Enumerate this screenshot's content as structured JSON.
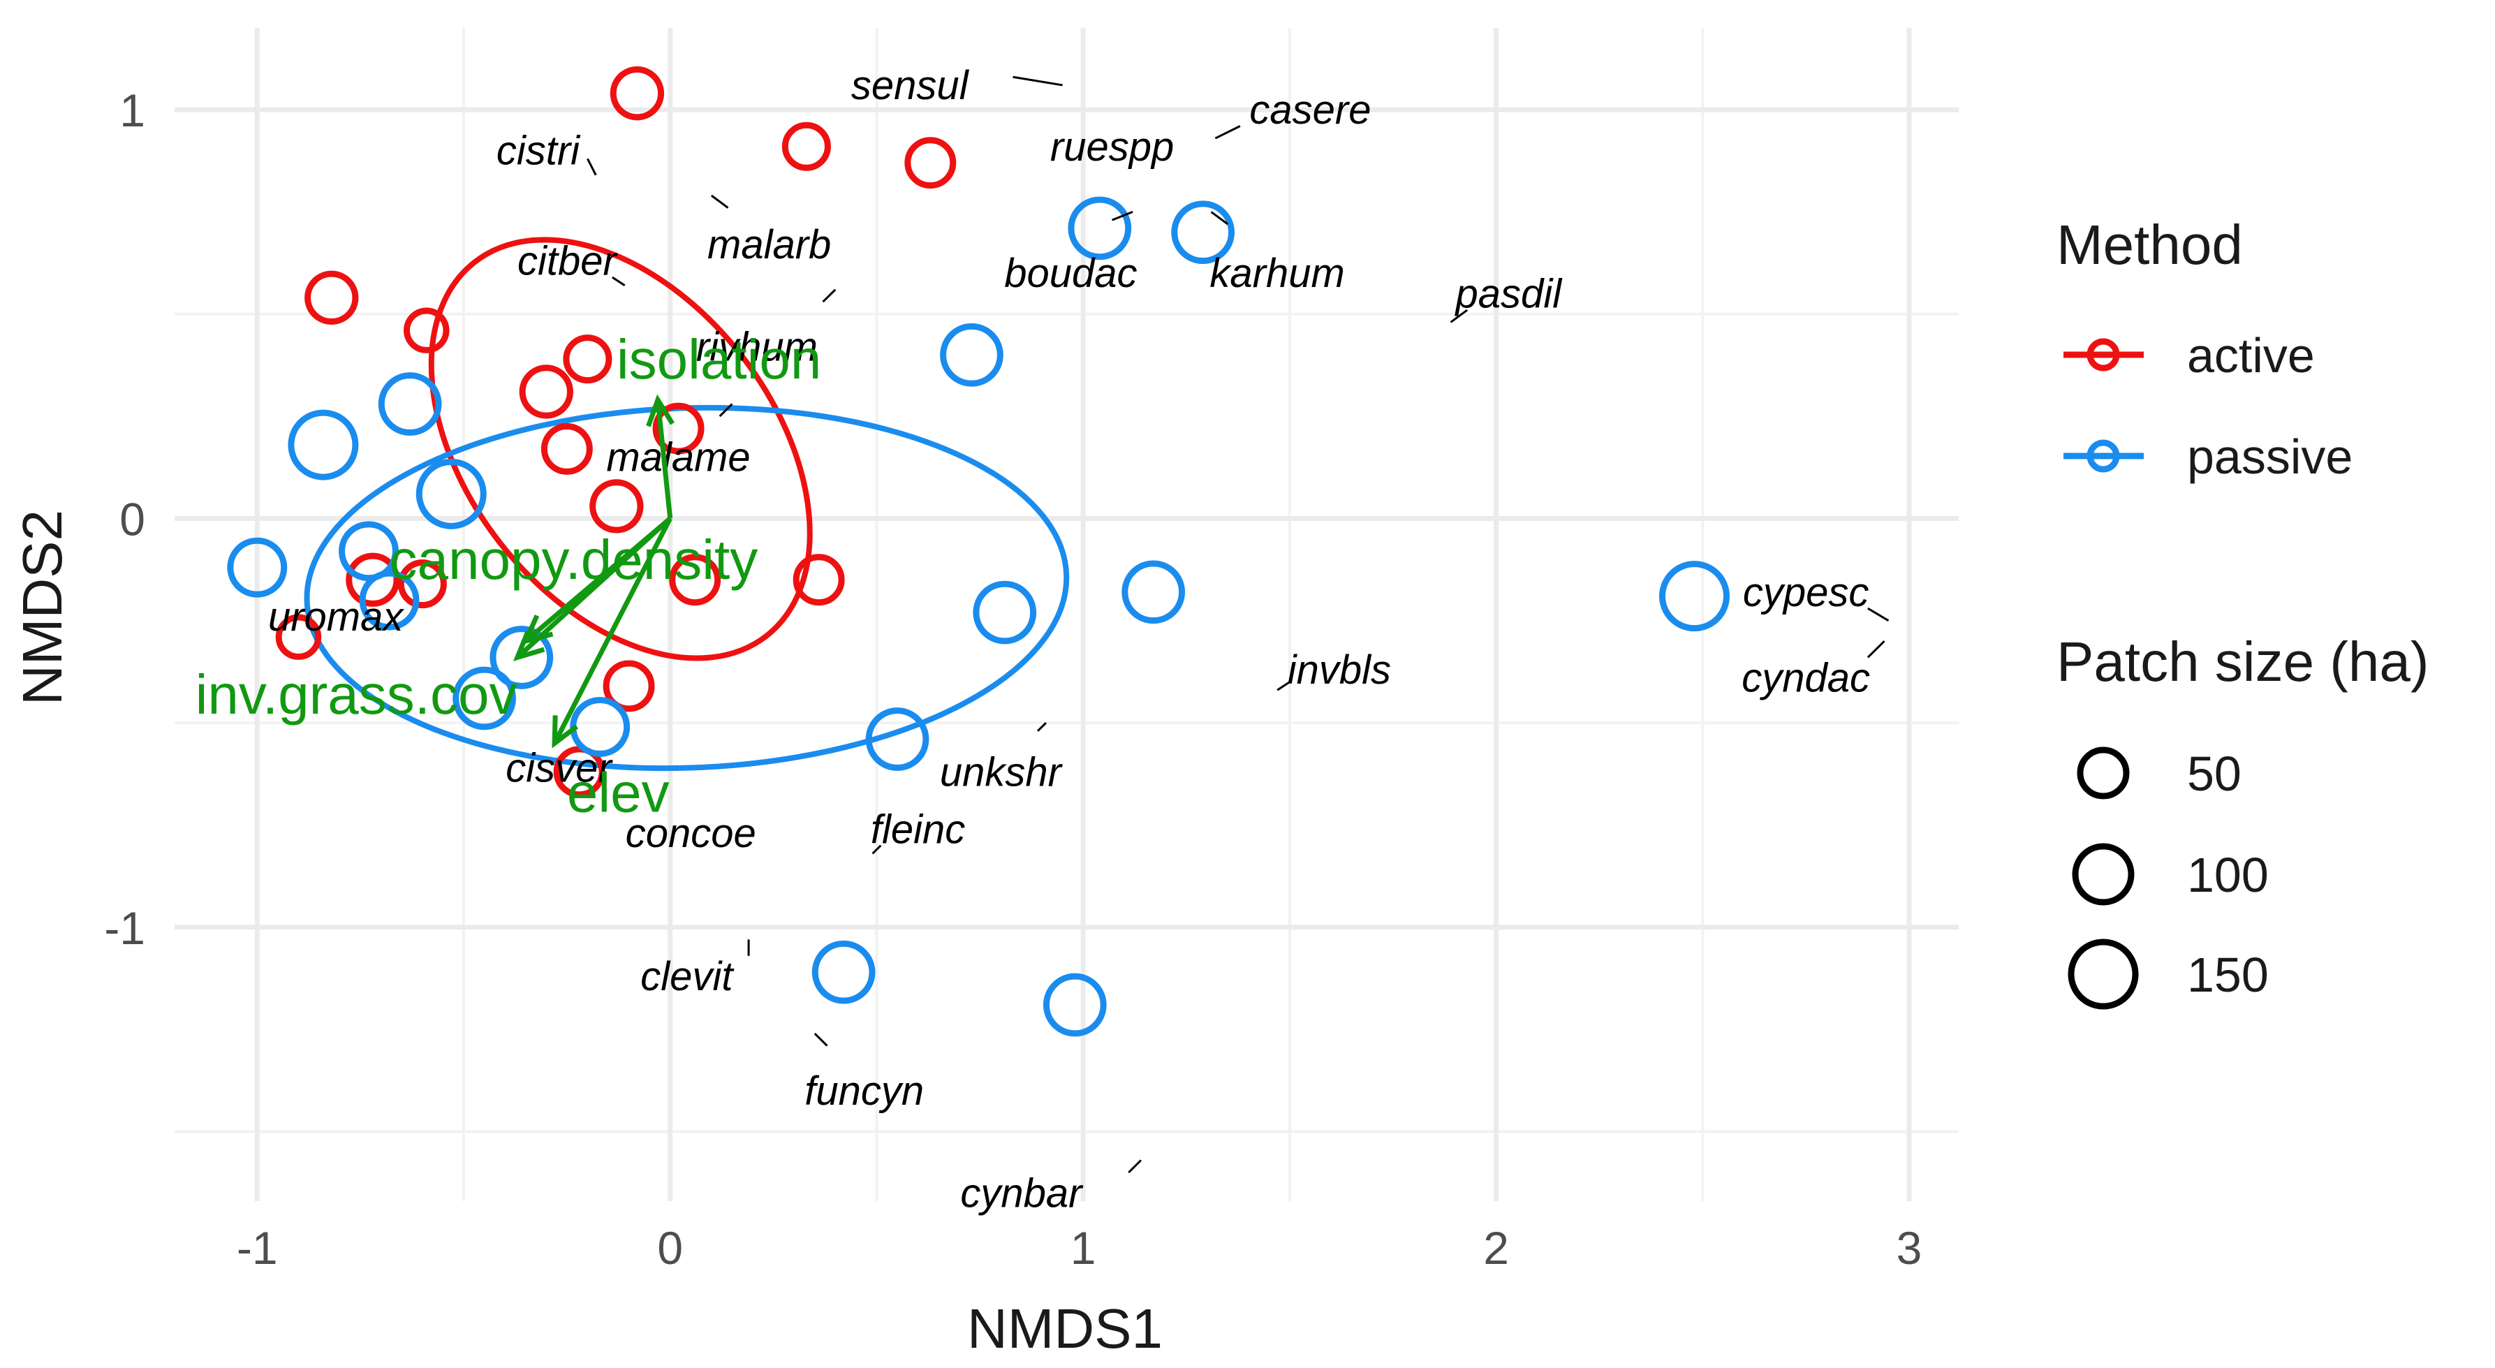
{
  "chart_data": {
    "type": "scatter",
    "title": "",
    "xlabel": "NMDS1",
    "ylabel": "NMDS2",
    "xlim": [
      -1.2,
      3.12
    ],
    "ylim": [
      -1.67,
      1.2
    ],
    "xticks": [
      -1,
      0,
      1,
      2,
      3
    ],
    "yticks": [
      -1,
      0,
      1
    ],
    "xtick_labels": [
      "-1",
      "0",
      "1",
      "2",
      "3"
    ],
    "ytick_labels": [
      "-1",
      "0",
      "1"
    ],
    "grid": true,
    "colors": {
      "active": "#ee1111",
      "passive": "#1a8cee",
      "vectors": "#119911"
    },
    "series": [
      {
        "name": "active",
        "color": "#ee1111",
        "points": [
          {
            "x": -0.08,
            "y": 1.04,
            "size": 50
          },
          {
            "x": 0.33,
            "y": 0.91,
            "size": 30
          },
          {
            "x": 0.63,
            "y": 0.87,
            "size": 40
          },
          {
            "x": -0.82,
            "y": 0.54,
            "size": 50
          },
          {
            "x": -0.59,
            "y": 0.46,
            "size": 20
          },
          {
            "x": -0.2,
            "y": 0.39,
            "size": 30
          },
          {
            "x": -0.3,
            "y": 0.31,
            "size": 50
          },
          {
            "x": 0.02,
            "y": 0.22,
            "size": 40
          },
          {
            "x": -0.25,
            "y": 0.17,
            "size": 40
          },
          {
            "x": -0.13,
            "y": 0.03,
            "size": 50
          },
          {
            "x": -0.72,
            "y": -0.15,
            "size": 50
          },
          {
            "x": -0.6,
            "y": -0.16,
            "size": 30
          },
          {
            "x": 0.06,
            "y": -0.15,
            "size": 40
          },
          {
            "x": 0.36,
            "y": -0.15,
            "size": 40
          },
          {
            "x": -0.9,
            "y": -0.29,
            "size": 20
          },
          {
            "x": -0.1,
            "y": -0.41,
            "size": 40
          },
          {
            "x": -0.22,
            "y": -0.62,
            "size": 40
          }
        ]
      },
      {
        "name": "passive",
        "color": "#1a8cee",
        "points": [
          {
            "x": 1.04,
            "y": 0.71,
            "size": 100
          },
          {
            "x": 1.29,
            "y": 0.7,
            "size": 100
          },
          {
            "x": 0.73,
            "y": 0.4,
            "size": 100
          },
          {
            "x": -0.63,
            "y": 0.28,
            "size": 100
          },
          {
            "x": -0.84,
            "y": 0.18,
            "size": 150
          },
          {
            "x": -0.53,
            "y": 0.06,
            "size": 150
          },
          {
            "x": -0.73,
            "y": -0.08,
            "size": 80
          },
          {
            "x": -1.0,
            "y": -0.12,
            "size": 80
          },
          {
            "x": -0.68,
            "y": -0.2,
            "size": 80
          },
          {
            "x": 1.17,
            "y": -0.18,
            "size": 100
          },
          {
            "x": 2.48,
            "y": -0.19,
            "size": 150
          },
          {
            "x": 0.81,
            "y": -0.23,
            "size": 100
          },
          {
            "x": -0.36,
            "y": -0.34,
            "size": 100
          },
          {
            "x": -0.45,
            "y": -0.44,
            "size": 100
          },
          {
            "x": -0.17,
            "y": -0.51,
            "size": 80
          },
          {
            "x": 0.55,
            "y": -0.54,
            "size": 100
          },
          {
            "x": 0.42,
            "y": -1.11,
            "size": 100
          },
          {
            "x": 0.98,
            "y": -1.19,
            "size": 100
          }
        ]
      }
    ],
    "ellipses": [
      {
        "group": "active",
        "cx": -0.12,
        "cy": 0.17,
        "rx": 0.37,
        "ry": 0.58,
        "angle_deg": -38
      },
      {
        "group": "passive",
        "cx": 0.04,
        "cy": -0.17,
        "rx": 0.92,
        "ry": 0.44,
        "angle_deg": -2
      }
    ],
    "vectors": [
      {
        "label": "isolation",
        "x": -0.03,
        "y": 0.29,
        "label_x": -0.13,
        "label_y": 0.39
      },
      {
        "label": "canopy.density",
        "x": -0.35,
        "y": -0.3,
        "label_x": -0.68,
        "label_y": -0.1
      },
      {
        "label": "inv.grass.cov",
        "x": -0.37,
        "y": -0.34,
        "label_x": -1.15,
        "label_y": -0.43
      },
      {
        "label": "elev",
        "x": -0.28,
        "y": -0.55,
        "label_x": -0.25,
        "label_y": -0.67
      }
    ],
    "species_labels": [
      {
        "label": "sensul",
        "x": 0.58,
        "y": 1.06,
        "seg": [
          0.83,
          1.08,
          0.95,
          1.06
        ]
      },
      {
        "label": "casere",
        "x": 1.55,
        "y": 1.0,
        "seg": [
          1.38,
          0.96,
          1.32,
          0.93
        ]
      },
      {
        "label": "cistri",
        "x": -0.32,
        "y": 0.9,
        "seg": [
          -0.2,
          0.88,
          -0.18,
          0.84
        ]
      },
      {
        "label": "ruespp",
        "x": 1.07,
        "y": 0.91,
        "seg": [
          null,
          null,
          null,
          null
        ]
      },
      {
        "label": "malarb",
        "x": 0.24,
        "y": 0.67,
        "seg": [
          0.1,
          0.79,
          0.14,
          0.76
        ]
      },
      {
        "label": "boudac",
        "x": 0.97,
        "y": 0.6,
        "seg": [
          1.07,
          0.73,
          1.12,
          0.75
        ]
      },
      {
        "label": "karhum",
        "x": 1.47,
        "y": 0.6,
        "seg": [
          1.31,
          0.75,
          1.35,
          0.72
        ]
      },
      {
        "label": "citber",
        "x": -0.25,
        "y": 0.63,
        "seg": [
          -0.14,
          0.59,
          -0.11,
          0.57
        ]
      },
      {
        "label": "pasdil",
        "x": 2.03,
        "y": 0.55,
        "seg": [
          1.89,
          0.48,
          1.93,
          0.51
        ]
      },
      {
        "label": "rivhum",
        "x": 0.21,
        "y": 0.42,
        "seg": [
          0.37,
          0.53,
          0.4,
          0.56
        ]
      },
      {
        "label": "malame",
        "x": 0.02,
        "y": 0.15,
        "seg": [
          0.12,
          0.25,
          0.15,
          0.28
        ]
      },
      {
        "label": "uromax",
        "x": -0.81,
        "y": -0.24,
        "seg": [
          null,
          null,
          null,
          null
        ]
      },
      {
        "label": "cypesc",
        "x": 2.75,
        "y": -0.18,
        "seg": [
          2.9,
          -0.22,
          2.95,
          -0.25
        ]
      },
      {
        "label": "cyndac",
        "x": 2.75,
        "y": -0.39,
        "seg": [
          2.94,
          -0.3,
          2.9,
          -0.34
        ]
      },
      {
        "label": "invbls",
        "x": 1.62,
        "y": -0.37,
        "seg": [
          1.47,
          -0.42,
          1.5,
          -0.4
        ]
      },
      {
        "label": "cisver",
        "x": -0.27,
        "y": -0.61,
        "seg": [
          null,
          null,
          null,
          null
        ]
      },
      {
        "label": "unkshr",
        "x": 0.8,
        "y": -0.62,
        "seg": [
          0.89,
          -0.52,
          0.91,
          -0.5
        ]
      },
      {
        "label": "concoe",
        "x": 0.05,
        "y": -0.77,
        "seg": [
          null,
          null,
          null,
          null
        ]
      },
      {
        "label": "fleinc",
        "x": 0.6,
        "y": -0.76,
        "seg": [
          0.49,
          -0.82,
          0.51,
          -0.8
        ]
      },
      {
        "label": "clevit",
        "x": 0.04,
        "y": -1.12,
        "seg": [
          0.19,
          -1.07,
          0.19,
          -1.03
        ]
      },
      {
        "label": "funcyn",
        "x": 0.47,
        "y": -1.4,
        "seg": [
          0.35,
          -1.26,
          0.38,
          -1.29
        ]
      },
      {
        "label": "cynbar",
        "x": 0.85,
        "y": -1.65,
        "seg": [
          1.11,
          -1.6,
          1.14,
          -1.57
        ]
      }
    ],
    "legend": {
      "position": "right",
      "method_title": "Method",
      "method_items": [
        "active",
        "passive"
      ],
      "size_title": "Patch size (ha)",
      "size_items": [
        "50",
        "100",
        "150"
      ]
    }
  }
}
